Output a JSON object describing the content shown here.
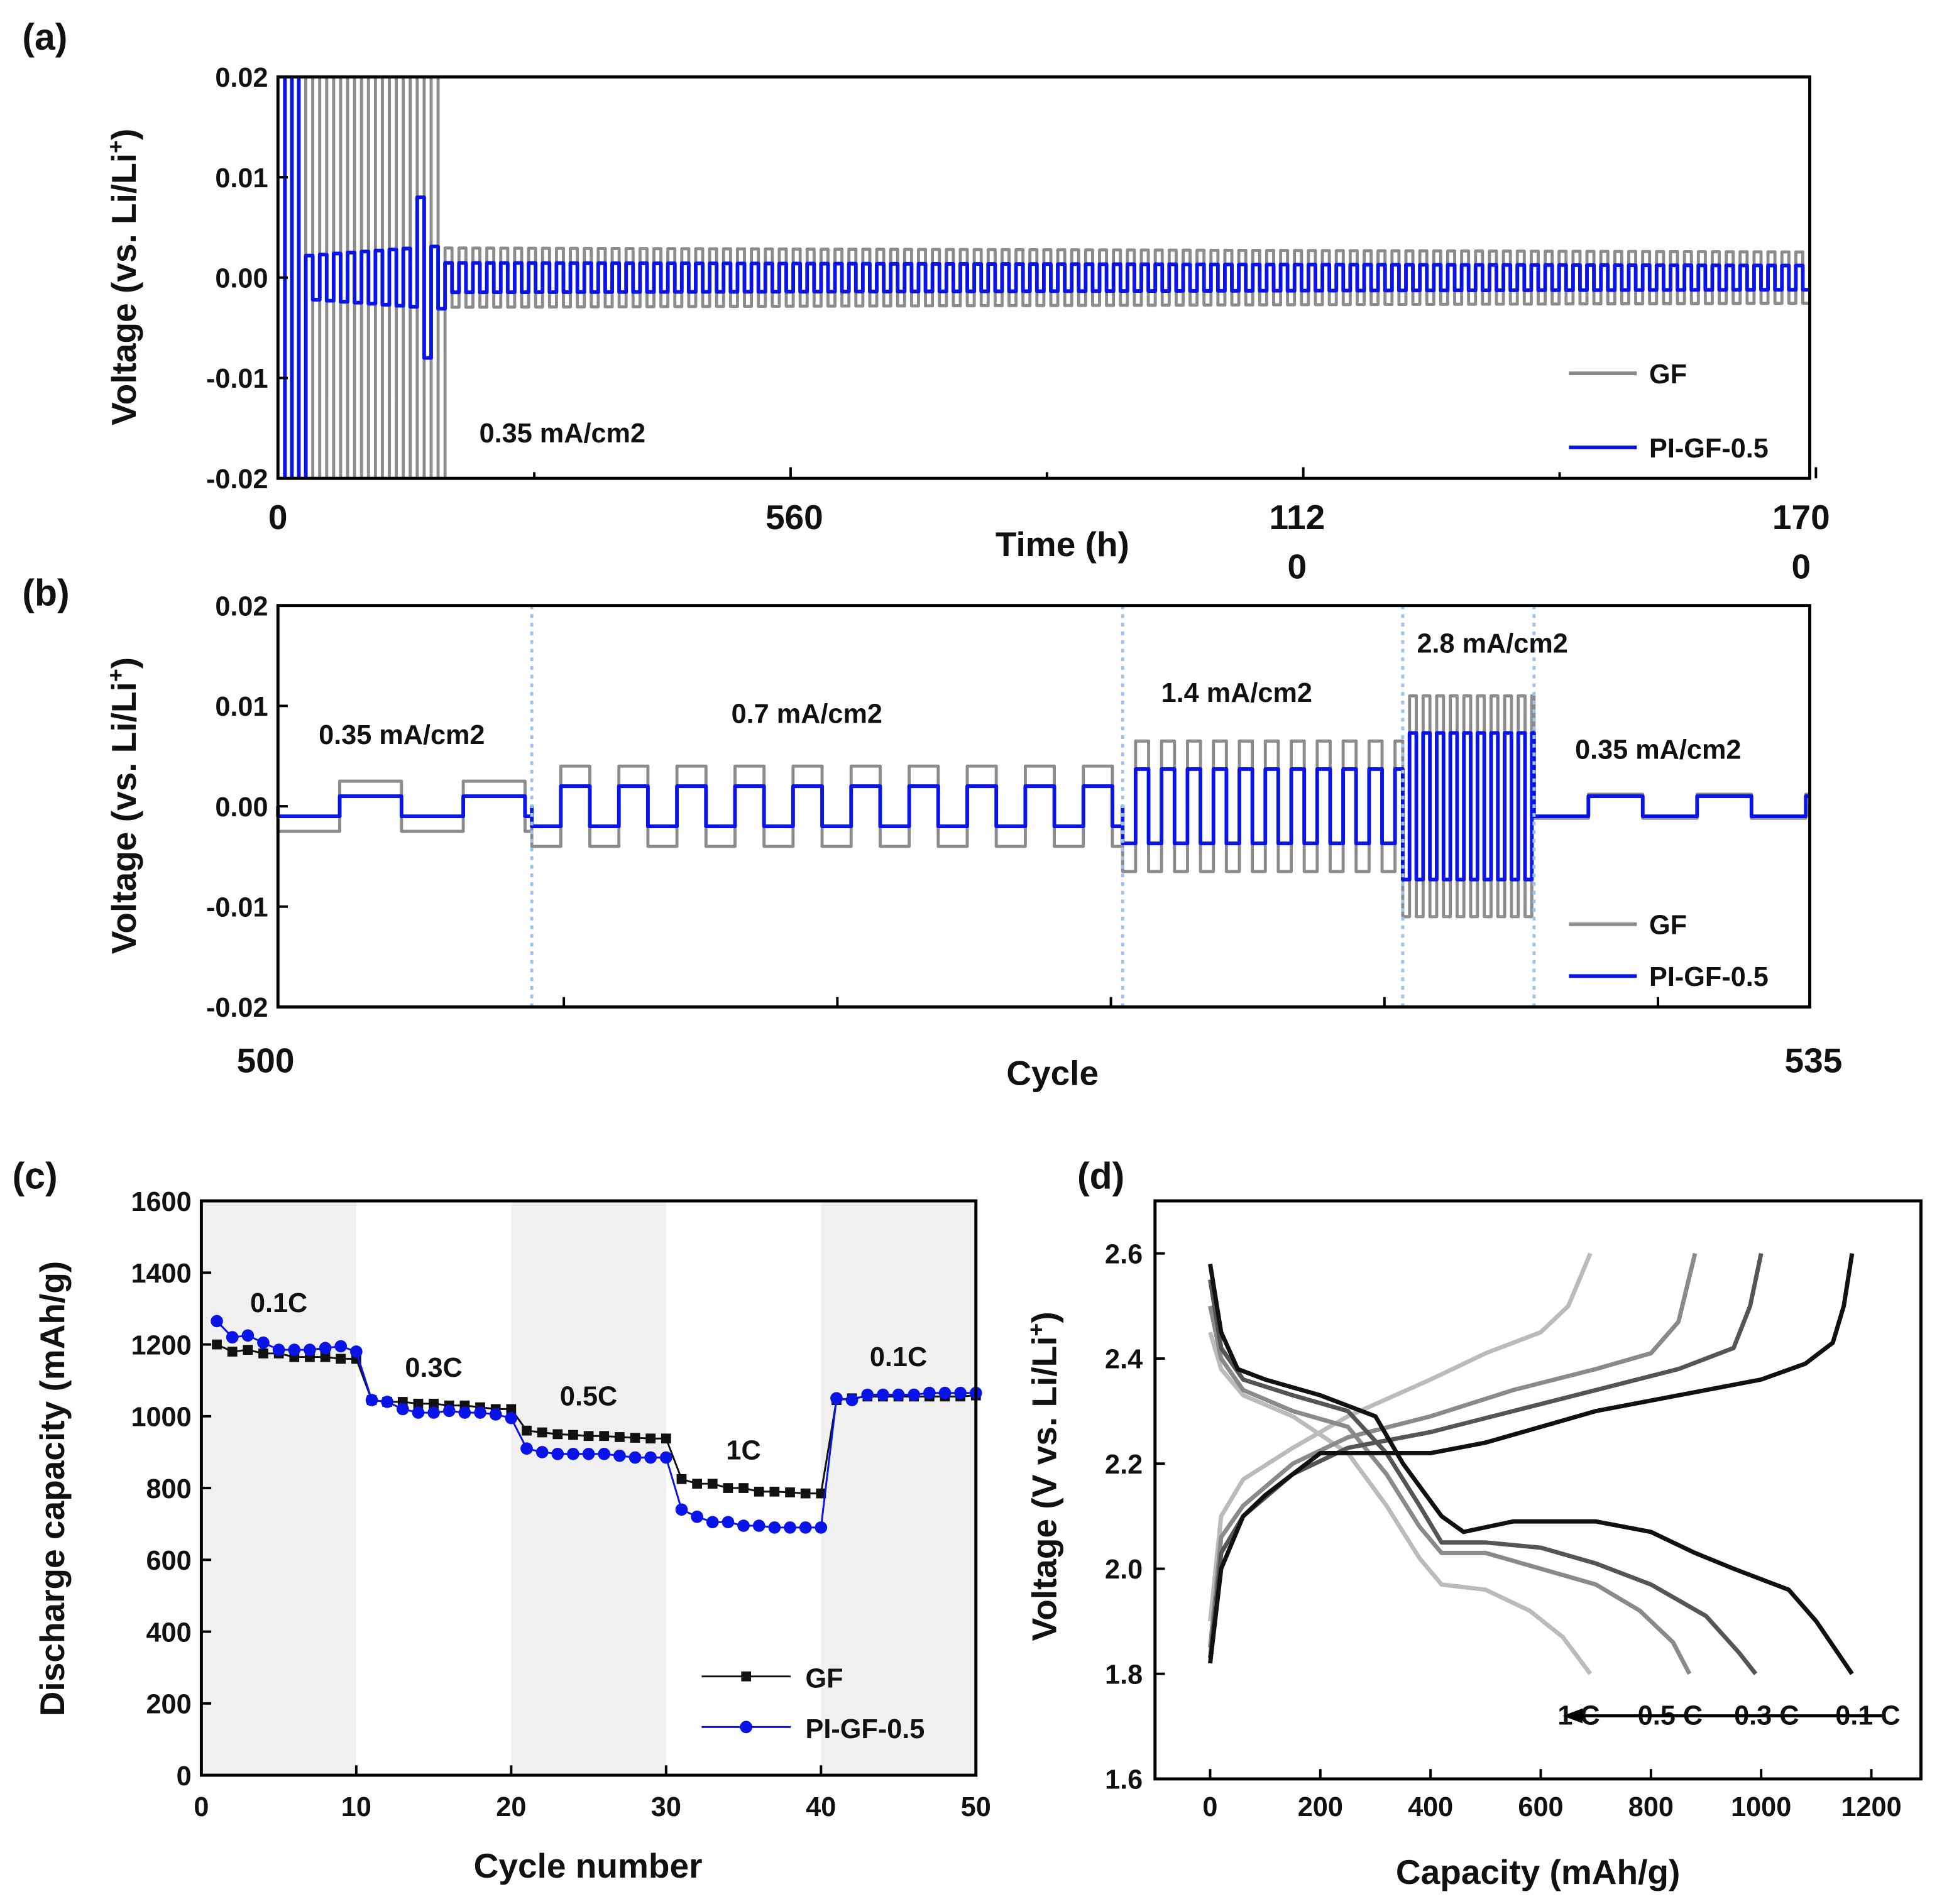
{
  "chart_data": [
    {
      "panel": "(a)",
      "type": "line",
      "xlabel": "Time (h)",
      "ylabel": "Voltage (vs. Li/Li+)",
      "ylim": [
        -0.02,
        0.02
      ],
      "xlim": [
        0,
        1680
      ],
      "yticks": [
        "0.02",
        "0.01",
        "0.00",
        "-0.01",
        "-0.02"
      ],
      "xticks": [
        "0",
        "560",
        "1120",
        "1700"
      ],
      "annotation": "0.35 mA/cm2",
      "series": [
        {
          "name": "GF",
          "color": "#8c8c8c",
          "steady_amplitude": 0.003
        },
        {
          "name": "PI-GF-0.5",
          "color": "#0a14e6",
          "steady_amplitude": 0.0015
        }
      ]
    },
    {
      "panel": "(b)",
      "type": "line",
      "xlabel": "Cycle",
      "ylabel": "Voltage (vs. Li/Li+)",
      "ylim": [
        -0.02,
        0.02
      ],
      "xlim": [
        500,
        535
      ],
      "yticks": [
        "0.02",
        "0.01",
        "0.00",
        "-0.01",
        "-0.02"
      ],
      "xticks": [
        "500",
        "535"
      ],
      "segments": [
        {
          "label": "0.35 mA/cm2",
          "start": 500,
          "end": 505.8,
          "GF": 0.0025,
          "PI-GF-0.5": 0.001
        },
        {
          "label": "0.7 mA/cm2",
          "start": 505.8,
          "end": 519.3,
          "GF": 0.004,
          "PI-GF-0.5": 0.002
        },
        {
          "label": "1.4 mA/cm2",
          "start": 519.3,
          "end": 525.7,
          "GF": 0.0065,
          "PI-GF-0.5": 0.0037
        },
        {
          "label": "2.8 mA/cm2",
          "start": 525.7,
          "end": 528.7,
          "GF": 0.011,
          "PI-GF-0.5": 0.0073
        },
        {
          "label": "0.35 mA/cm2",
          "start": 528.7,
          "end": 535,
          "GF": 0.0012,
          "PI-GF-0.5": 0.001
        }
      ],
      "series": [
        {
          "name": "GF",
          "color": "#8c8c8c"
        },
        {
          "name": "PI-GF-0.5",
          "color": "#0a14e6"
        }
      ]
    },
    {
      "panel": "(c)",
      "type": "line",
      "xlabel": "Cycle number",
      "ylabel": "Discharge capacity (mAh/g)",
      "xlim": [
        0,
        50
      ],
      "ylim": [
        0,
        1600
      ],
      "xticks": [
        "0",
        "10",
        "20",
        "30",
        "40",
        "50"
      ],
      "yticks": [
        "0",
        "200",
        "400",
        "600",
        "800",
        "1000",
        "1200",
        "1400",
        "1600"
      ],
      "shaded_ranges": [
        [
          0,
          10
        ],
        [
          20,
          30
        ],
        [
          40,
          50
        ]
      ],
      "annotations": [
        {
          "text": "0.1C",
          "x": 5,
          "y": 1290
        },
        {
          "text": "0.3C",
          "x": 15,
          "y": 1110
        },
        {
          "text": "0.5C",
          "x": 25,
          "y": 1030
        },
        {
          "text": "1C",
          "x": 35,
          "y": 880
        },
        {
          "text": "0.1C",
          "x": 45,
          "y": 1140
        }
      ],
      "x": [
        1,
        2,
        3,
        4,
        5,
        6,
        7,
        8,
        9,
        10,
        11,
        12,
        13,
        14,
        15,
        16,
        17,
        18,
        19,
        20,
        21,
        22,
        23,
        24,
        25,
        26,
        27,
        28,
        29,
        30,
        31,
        32,
        33,
        34,
        35,
        36,
        37,
        38,
        39,
        40,
        41,
        42,
        43,
        44,
        45,
        46,
        47,
        48,
        49,
        50
      ],
      "series": [
        {
          "name": "GF",
          "color": "#111111",
          "marker": "square",
          "values": [
            1200,
            1180,
            1185,
            1175,
            1175,
            1165,
            1165,
            1165,
            1160,
            1160,
            1045,
            1040,
            1040,
            1035,
            1035,
            1030,
            1030,
            1025,
            1020,
            1020,
            960,
            955,
            950,
            948,
            945,
            945,
            942,
            940,
            938,
            938,
            825,
            812,
            812,
            800,
            800,
            790,
            790,
            788,
            785,
            785,
            1045,
            1050,
            1055,
            1055,
            1055,
            1055,
            1055,
            1055,
            1055,
            1058
          ]
        },
        {
          "name": "PI-GF-0.5",
          "color": "#0a14e6",
          "marker": "circle",
          "values": [
            1265,
            1220,
            1225,
            1205,
            1185,
            1185,
            1185,
            1190,
            1195,
            1180,
            1045,
            1040,
            1020,
            1010,
            1010,
            1015,
            1010,
            1010,
            1005,
            995,
            910,
            900,
            895,
            895,
            895,
            895,
            890,
            885,
            885,
            885,
            740,
            720,
            705,
            705,
            695,
            695,
            690,
            690,
            690,
            690,
            1050,
            1045,
            1060,
            1060,
            1060,
            1060,
            1065,
            1065,
            1065,
            1065
          ]
        }
      ]
    },
    {
      "panel": "(d)",
      "type": "line",
      "xlabel": "Capacity (mAh/g)",
      "ylabel": "Voltage (V vs. Li/Li+)",
      "xlim": [
        -100,
        1290
      ],
      "ylim": [
        1.6,
        2.7
      ],
      "xticks": [
        "0",
        "200",
        "400",
        "600",
        "800",
        "1000",
        "1200"
      ],
      "yticks": [
        "1.6",
        "1.8",
        "2.0",
        "2.2",
        "2.4",
        "2.6"
      ],
      "series": [
        {
          "name": "0.1 C",
          "color": "#111111",
          "discharge": [
            [
              0,
              2.58
            ],
            [
              20,
              2.45
            ],
            [
              50,
              2.38
            ],
            [
              100,
              2.36
            ],
            [
              200,
              2.33
            ],
            [
              300,
              2.29
            ],
            [
              350,
              2.2
            ],
            [
              420,
              2.1
            ],
            [
              460,
              2.07
            ],
            [
              550,
              2.09
            ],
            [
              700,
              2.09
            ],
            [
              800,
              2.07
            ],
            [
              880,
              2.03
            ],
            [
              950,
              2.0
            ],
            [
              1050,
              1.96
            ],
            [
              1100,
              1.9
            ],
            [
              1165,
              1.8
            ]
          ],
          "charge": [
            [
              0,
              1.82
            ],
            [
              20,
              2.0
            ],
            [
              60,
              2.1
            ],
            [
              100,
              2.14
            ],
            [
              200,
              2.22
            ],
            [
              300,
              2.22
            ],
            [
              400,
              2.22
            ],
            [
              500,
              2.24
            ],
            [
              600,
              2.27
            ],
            [
              700,
              2.3
            ],
            [
              850,
              2.33
            ],
            [
              1000,
              2.36
            ],
            [
              1080,
              2.39
            ],
            [
              1130,
              2.43
            ],
            [
              1150,
              2.5
            ],
            [
              1165,
              2.6
            ]
          ]
        },
        {
          "name": "0.3 C",
          "color": "#555555",
          "discharge": [
            [
              0,
              2.55
            ],
            [
              20,
              2.42
            ],
            [
              60,
              2.36
            ],
            [
              150,
              2.33
            ],
            [
              250,
              2.3
            ],
            [
              320,
              2.22
            ],
            [
              380,
              2.12
            ],
            [
              420,
              2.05
            ],
            [
              500,
              2.05
            ],
            [
              600,
              2.04
            ],
            [
              700,
              2.01
            ],
            [
              800,
              1.97
            ],
            [
              900,
              1.91
            ],
            [
              960,
              1.84
            ],
            [
              990,
              1.8
            ]
          ],
          "charge": [
            [
              0,
              1.83
            ],
            [
              20,
              2.03
            ],
            [
              60,
              2.1
            ],
            [
              150,
              2.18
            ],
            [
              250,
              2.23
            ],
            [
              400,
              2.26
            ],
            [
              550,
              2.3
            ],
            [
              700,
              2.34
            ],
            [
              850,
              2.38
            ],
            [
              950,
              2.42
            ],
            [
              980,
              2.5
            ],
            [
              1000,
              2.6
            ]
          ]
        },
        {
          "name": "0.5 C",
          "color": "#8a8a8a",
          "discharge": [
            [
              0,
              2.5
            ],
            [
              20,
              2.4
            ],
            [
              60,
              2.34
            ],
            [
              150,
              2.3
            ],
            [
              250,
              2.27
            ],
            [
              320,
              2.18
            ],
            [
              380,
              2.08
            ],
            [
              420,
              2.03
            ],
            [
              500,
              2.03
            ],
            [
              600,
              2.0
            ],
            [
              700,
              1.97
            ],
            [
              780,
              1.92
            ],
            [
              840,
              1.86
            ],
            [
              870,
              1.8
            ]
          ],
          "charge": [
            [
              0,
              1.85
            ],
            [
              20,
              2.06
            ],
            [
              60,
              2.12
            ],
            [
              150,
              2.2
            ],
            [
              250,
              2.25
            ],
            [
              400,
              2.29
            ],
            [
              550,
              2.34
            ],
            [
              700,
              2.38
            ],
            [
              800,
              2.41
            ],
            [
              850,
              2.47
            ],
            [
              880,
              2.6
            ]
          ]
        },
        {
          "name": "1 C",
          "color": "#bbbbbb",
          "discharge": [
            [
              0,
              2.45
            ],
            [
              20,
              2.38
            ],
            [
              60,
              2.33
            ],
            [
              150,
              2.29
            ],
            [
              250,
              2.22
            ],
            [
              320,
              2.12
            ],
            [
              380,
              2.02
            ],
            [
              420,
              1.97
            ],
            [
              500,
              1.96
            ],
            [
              580,
              1.92
            ],
            [
              640,
              1.87
            ],
            [
              690,
              1.8
            ]
          ],
          "charge": [
            [
              0,
              1.9
            ],
            [
              20,
              2.1
            ],
            [
              60,
              2.17
            ],
            [
              150,
              2.23
            ],
            [
              250,
              2.29
            ],
            [
              400,
              2.36
            ],
            [
              500,
              2.41
            ],
            [
              600,
              2.45
            ],
            [
              650,
              2.5
            ],
            [
              690,
              2.6
            ]
          ]
        }
      ],
      "arrow": {
        "from": 1220,
        "to": 640,
        "y": 1.72
      }
    }
  ]
}
